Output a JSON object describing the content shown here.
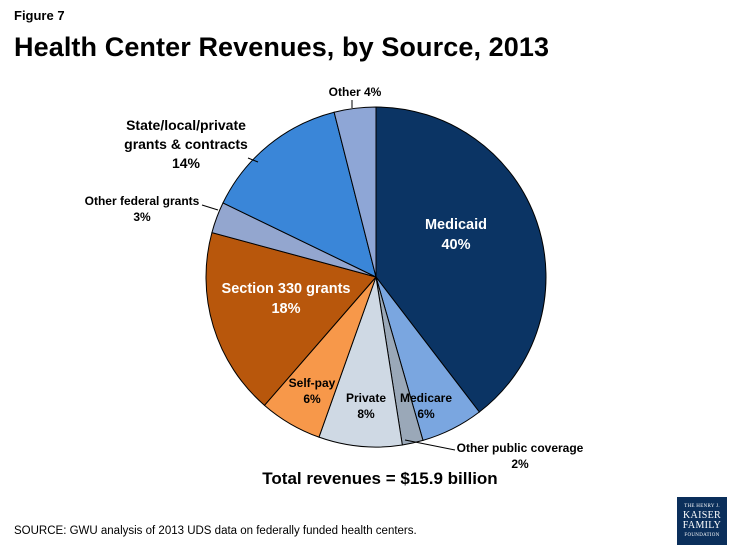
{
  "header": {
    "figure_label": "Figure 7",
    "title": "Health Center Revenues, by Source, 2013"
  },
  "chart_data": {
    "type": "pie",
    "title": "Health Center Revenues, by Source, 2013",
    "slices": [
      {
        "name": "Medicaid",
        "value": 40,
        "label": "40%",
        "color": "#0b3464"
      },
      {
        "name": "Medicare",
        "value": 6,
        "label": "6%",
        "color": "#7aa6e0"
      },
      {
        "name": "Other public coverage",
        "value": 2,
        "label": "2%",
        "color": "#9aa8b8"
      },
      {
        "name": "Private",
        "value": 8,
        "label": "8%",
        "color": "#cfd9e4"
      },
      {
        "name": "Self-pay",
        "value": 6,
        "label": "6%",
        "color": "#f7984a"
      },
      {
        "name": "Section 330 grants",
        "value": 18,
        "label": "18%",
        "color": "#b8570c"
      },
      {
        "name": "Other federal grants",
        "value": 3,
        "label": "3%",
        "color": "#93a6cf"
      },
      {
        "name": "State/local/private grants & contracts",
        "value": 14,
        "label": "14%",
        "color": "#3a86d8"
      },
      {
        "name": "Other",
        "value": 4,
        "label": "4%",
        "color": "#8ea6d6"
      }
    ],
    "total_note": "Total revenues = $15.9 billion"
  },
  "footer": {
    "source": "SOURCE: GWU analysis of 2013 UDS data on federally funded health centers."
  },
  "logo": {
    "line1": "THE HENRY J.",
    "line2": "KAISER",
    "line3": "FAMILY",
    "line4": "FOUNDATION"
  }
}
